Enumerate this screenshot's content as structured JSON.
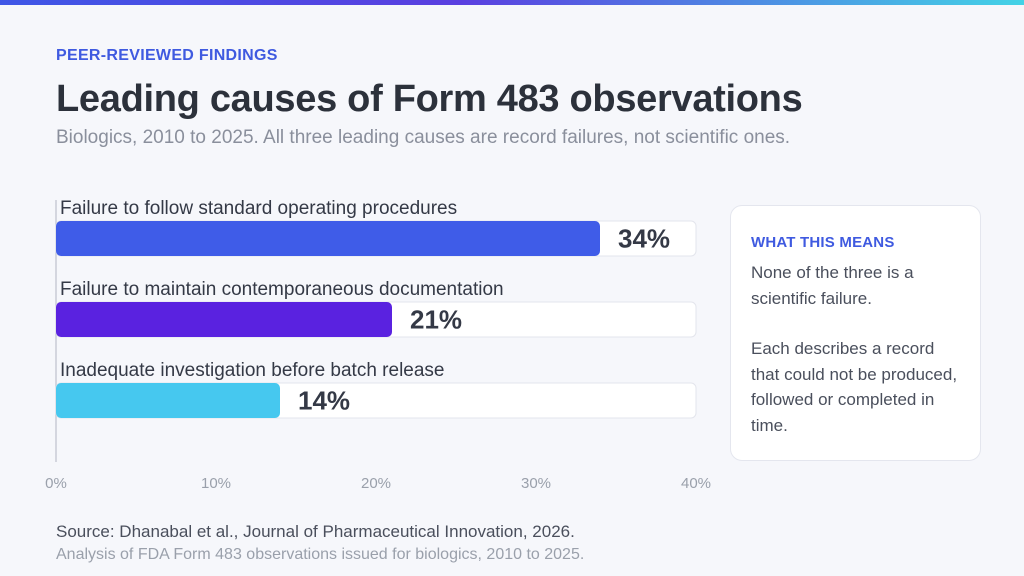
{
  "header": {
    "eyebrow": "PEER-REVIEWED FINDINGS",
    "title": "Leading causes of Form 483 observations",
    "subtitle": "Biologics, 2010 to 2025. All three leading causes are record failures, not scientific ones."
  },
  "chart_data": {
    "type": "bar",
    "orientation": "horizontal",
    "title": "Leading causes of Form 483 observations",
    "subtitle": "Biologics, 2010 to 2025. All three leading causes are record failures, not scientific ones.",
    "xlabel": "",
    "ylabel": "",
    "categories": [
      "Failure to follow standard operating procedures",
      "Failure to maintain contemporaneous documentation",
      "Inadequate investigation before batch release"
    ],
    "values": [
      34,
      21,
      14
    ],
    "value_labels": [
      "34%",
      "21%",
      "14%"
    ],
    "colors": [
      "#3f5ce8",
      "#5a22e0",
      "#46c8ef"
    ],
    "xlim": [
      0,
      40
    ],
    "xticks": [
      0,
      10,
      20,
      30,
      40
    ],
    "xtick_labels": [
      "0%",
      "10%",
      "20%",
      "30%",
      "40%"
    ],
    "grid": false,
    "legend": "none"
  },
  "side_card": {
    "title": "WHAT THIS MEANS",
    "paragraph1": "None of the three is a scientific failure.",
    "paragraph2": "Each describes a record that could not be produced, followed or completed in time."
  },
  "footer": {
    "source": "Source: Dhanabal et al., Journal of Pharmaceutical Innovation, 2026.",
    "note": "Analysis of FDA Form 483 observations issued for biologics, 2010 to 2025."
  }
}
